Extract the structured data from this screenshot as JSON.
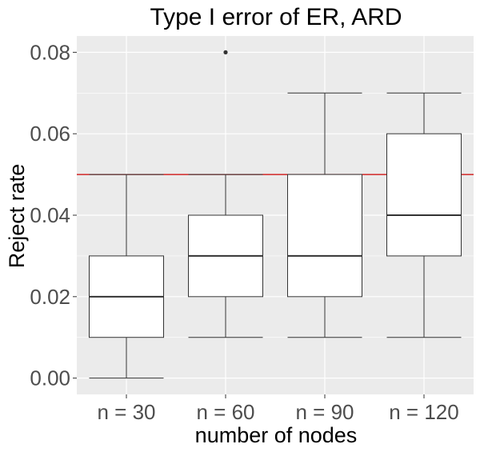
{
  "chart_data": {
    "type": "boxplot",
    "title": "Type I error of ER, ARD",
    "xlabel": "number of nodes",
    "ylabel": "Reject rate",
    "categories": [
      "n = 30",
      "n = 60",
      "n = 90",
      "n = 120"
    ],
    "ylim": [
      -0.004,
      0.084
    ],
    "yticks": [
      0.0,
      0.02,
      0.04,
      0.06,
      0.08
    ],
    "ytick_labels": [
      "0.00",
      "0.02",
      "0.04",
      "0.06",
      "0.08"
    ],
    "boxes": [
      {
        "category": "n = 30",
        "whisker_low": 0.0,
        "q1": 0.01,
        "median": 0.02,
        "q3": 0.03,
        "whisker_high": 0.05,
        "outliers": []
      },
      {
        "category": "n = 60",
        "whisker_low": 0.01,
        "q1": 0.02,
        "median": 0.03,
        "q3": 0.04,
        "whisker_high": 0.05,
        "outliers": [
          0.08
        ]
      },
      {
        "category": "n = 90",
        "whisker_low": 0.01,
        "q1": 0.02,
        "median": 0.03,
        "q3": 0.05,
        "whisker_high": 0.07,
        "outliers": []
      },
      {
        "category": "n = 120",
        "whisker_low": 0.01,
        "q1": 0.03,
        "median": 0.04,
        "q3": 0.06,
        "whisker_high": 0.07,
        "outliers": []
      }
    ],
    "reference_line": {
      "y": 0.05,
      "color": "#cc0000"
    },
    "grid": true,
    "panel_background": "#ebebeb",
    "grid_color": "#ffffff"
  }
}
